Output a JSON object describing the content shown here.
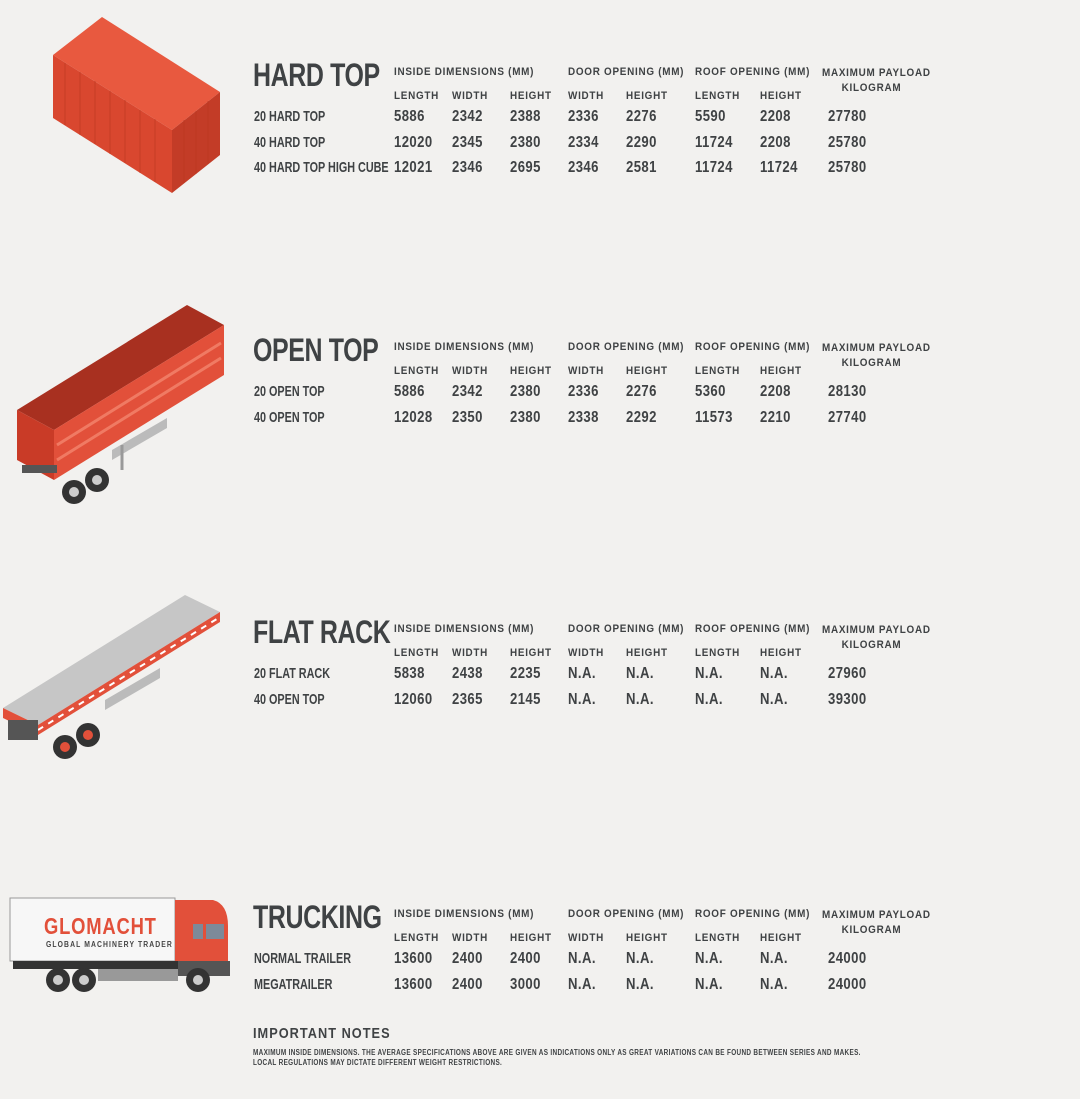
{
  "column_headers": {
    "inside_dimensions": "INSIDE DIMENSIONS (MM)",
    "door_opening": "DOOR OPENING (MM)",
    "roof_opening": "ROOF OPENING (MM)",
    "max_payload": "MAXIMUM PAYLOAD",
    "max_payload_unit": "KILOGRAM",
    "sub": [
      "LENGTH",
      "WIDTH",
      "HEIGHT",
      "WIDTH",
      "HEIGHT",
      "LENGTH",
      "HEIGHT"
    ]
  },
  "sections": [
    {
      "title": "HARD TOP",
      "illustration": "red-shipping-container",
      "rows": [
        [
          "20 HARD TOP",
          "5886",
          "2342",
          "2388",
          "2336",
          "2276",
          "5590",
          "2208",
          "27780"
        ],
        [
          "40 HARD TOP",
          "12020",
          "2345",
          "2380",
          "2334",
          "2290",
          "11724",
          "2208",
          "25780"
        ],
        [
          "40 HARD TOP HIGH CUBE",
          "12021",
          "2346",
          "2695",
          "2346",
          "2581",
          "11724",
          "11724",
          "25780"
        ]
      ]
    },
    {
      "title": "OPEN TOP",
      "illustration": "red-open-top-trailer",
      "rows": [
        [
          "20 OPEN TOP",
          "5886",
          "2342",
          "2380",
          "2336",
          "2276",
          "5360",
          "2208",
          "28130"
        ],
        [
          "40 OPEN TOP",
          "12028",
          "2350",
          "2380",
          "2338",
          "2292",
          "11573",
          "2210",
          "27740"
        ]
      ]
    },
    {
      "title": "FLAT RACK",
      "illustration": "grey-flat-rack-trailer",
      "rows": [
        [
          "20 FLAT RACK",
          "5838",
          "2438",
          "2235",
          "N.A.",
          "N.A.",
          "N.A.",
          "N.A.",
          "27960"
        ],
        [
          "40 OPEN TOP",
          "12060",
          "2365",
          "2145",
          "N.A.",
          "N.A.",
          "N.A.",
          "N.A.",
          "39300"
        ]
      ]
    },
    {
      "title": "TRUCKING",
      "illustration": "glomacht-truck",
      "rows": [
        [
          "NORMAL TRAILER",
          "13600",
          "2400",
          "2400",
          "N.A.",
          "N.A.",
          "N.A.",
          "N.A.",
          "24000"
        ],
        [
          "MEGATRAILER",
          "13600",
          "2400",
          "3000",
          "N.A.",
          "N.A.",
          "N.A.",
          "N.A.",
          "24000"
        ]
      ]
    }
  ],
  "truck_logo": {
    "brand": "GLOMACHT",
    "tagline": "GLOBAL MACHINERY TRADER"
  },
  "notes": {
    "title": "IMPORTANT NOTES",
    "line1": "MAXIMUM INSIDE DIMENSIONS. THE AVERAGE SPECIFICATIONS ABOVE ARE GIVEN AS INDICATIONS ONLY AS GREAT VARIATIONS CAN BE FOUND BETWEEN SERIES AND MAKES.",
    "line2": "LOCAL REGULATIONS MAY DICTATE DIFFERENT WEIGHT RESTRICTIONS."
  },
  "colors": {
    "text": "#3f4244",
    "accent_red": "#e2503a",
    "background": "#f2f1ef"
  }
}
